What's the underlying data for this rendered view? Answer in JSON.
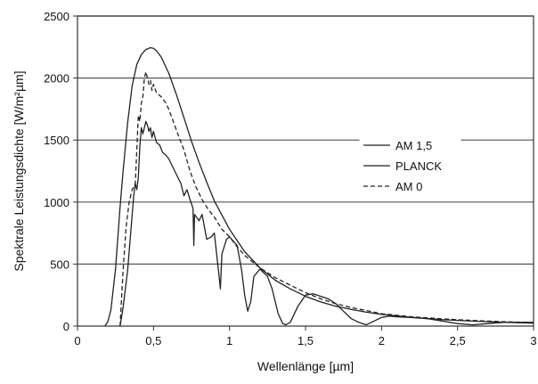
{
  "chart_data": {
    "type": "line",
    "title": "",
    "xlabel": "Wellenlänge [µm]",
    "ylabel": "Spektrale Leistungsdichte [W/m²µm]",
    "xlim": [
      0,
      3
    ],
    "ylim": [
      0,
      2500
    ],
    "x_ticks": [
      0,
      0.5,
      1,
      1.5,
      2,
      2.5,
      3
    ],
    "x_tick_labels": [
      "0",
      "0,5",
      "1",
      "1,5",
      "2",
      "2,5",
      "3"
    ],
    "y_ticks": [
      0,
      500,
      1000,
      1500,
      2000,
      2500
    ],
    "y_tick_labels": [
      "0",
      "500",
      "1000",
      "1500",
      "2000",
      "2500"
    ],
    "grid": "horizontal",
    "legend_position": "right",
    "series": [
      {
        "name": "AM 1,5",
        "style": "solid",
        "x": [
          0.28,
          0.3,
          0.33,
          0.35,
          0.37,
          0.38,
          0.39,
          0.4,
          0.41,
          0.42,
          0.43,
          0.44,
          0.45,
          0.46,
          0.47,
          0.48,
          0.49,
          0.5,
          0.52,
          0.54,
          0.56,
          0.58,
          0.6,
          0.62,
          0.64,
          0.66,
          0.68,
          0.69,
          0.7,
          0.72,
          0.74,
          0.76,
          0.765,
          0.77,
          0.8,
          0.82,
          0.85,
          0.88,
          0.9,
          0.93,
          0.94,
          0.95,
          0.98,
          1.0,
          1.05,
          1.08,
          1.1,
          1.12,
          1.14,
          1.16,
          1.2,
          1.25,
          1.28,
          1.32,
          1.35,
          1.37,
          1.4,
          1.45,
          1.5,
          1.55,
          1.6,
          1.65,
          1.7,
          1.75,
          1.8,
          1.85,
          1.9,
          1.95,
          2.0,
          2.05,
          2.1,
          2.2,
          2.3,
          2.4,
          2.5,
          2.6,
          2.7,
          2.8,
          3.0
        ],
        "values": [
          0,
          150,
          450,
          750,
          1050,
          1150,
          1100,
          1200,
          1450,
          1600,
          1550,
          1600,
          1650,
          1620,
          1570,
          1600,
          1520,
          1570,
          1480,
          1460,
          1400,
          1380,
          1350,
          1300,
          1250,
          1200,
          1150,
          1100,
          1050,
          1100,
          1020,
          950,
          650,
          900,
          850,
          900,
          700,
          720,
          750,
          420,
          300,
          580,
          700,
          720,
          650,
          450,
          250,
          120,
          200,
          400,
          460,
          400,
          300,
          100,
          20,
          10,
          30,
          160,
          250,
          260,
          240,
          220,
          180,
          120,
          60,
          30,
          10,
          40,
          70,
          80,
          75,
          70,
          60,
          40,
          20,
          10,
          20,
          30,
          30
        ]
      },
      {
        "name": "PLANCK",
        "style": "solid",
        "x": [
          0.18,
          0.2,
          0.22,
          0.25,
          0.28,
          0.3,
          0.33,
          0.36,
          0.39,
          0.42,
          0.45,
          0.48,
          0.5,
          0.52,
          0.55,
          0.6,
          0.65,
          0.7,
          0.75,
          0.8,
          0.85,
          0.9,
          1.0,
          1.1,
          1.2,
          1.3,
          1.4,
          1.5,
          1.6,
          1.7,
          1.8,
          1.9,
          2.0,
          2.2,
          2.4,
          2.6,
          2.8,
          3.0
        ],
        "values": [
          0,
          35,
          130,
          460,
          960,
          1250,
          1640,
          1940,
          2110,
          2190,
          2230,
          2245,
          2240,
          2220,
          2170,
          2040,
          1870,
          1680,
          1490,
          1320,
          1160,
          1010,
          780,
          600,
          470,
          370,
          300,
          240,
          195,
          160,
          135,
          112,
          95,
          70,
          52,
          40,
          31,
          24
        ]
      },
      {
        "name": "AM 0",
        "style": "dashed",
        "x": [
          0.28,
          0.3,
          0.32,
          0.34,
          0.36,
          0.38,
          0.4,
          0.41,
          0.42,
          0.43,
          0.44,
          0.45,
          0.46,
          0.47,
          0.48,
          0.49,
          0.5,
          0.52,
          0.55,
          0.58,
          0.6,
          0.63,
          0.66,
          0.7,
          0.74,
          0.78,
          0.82,
          0.86,
          0.9,
          0.95,
          1.0,
          1.05,
          1.1,
          1.2,
          1.3,
          1.4,
          1.5,
          1.6,
          1.7,
          1.8,
          1.9,
          2.0,
          2.2,
          2.4,
          2.6,
          2.8,
          3.0
        ],
        "values": [
          0,
          450,
          800,
          1000,
          1100,
          1150,
          1700,
          1650,
          1800,
          1850,
          2000,
          2050,
          2000,
          1950,
          1980,
          1900,
          1950,
          1880,
          1850,
          1800,
          1750,
          1650,
          1550,
          1420,
          1250,
          1120,
          1020,
          940,
          880,
          780,
          720,
          640,
          570,
          470,
          390,
          330,
          270,
          220,
          180,
          150,
          125,
          100,
          75,
          58,
          45,
          35,
          28
        ]
      }
    ]
  }
}
